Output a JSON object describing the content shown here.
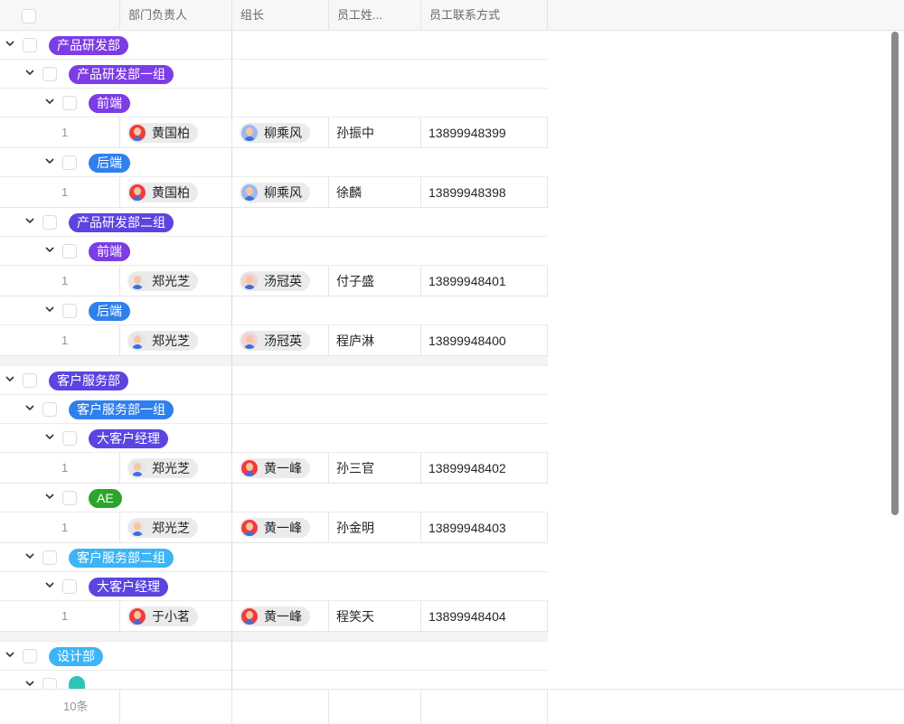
{
  "columns": [
    "部门负责人",
    "组长",
    "员工姓...",
    "员工联系方式"
  ],
  "footer": {
    "count": "10条"
  },
  "rows": [
    {
      "type": "group",
      "level": 0,
      "label": "产品研发部",
      "color": "#7c3ce6"
    },
    {
      "type": "group",
      "level": 1,
      "label": "产品研发部一组",
      "color": "#7c3ce6"
    },
    {
      "type": "group",
      "level": 2,
      "label": "前端",
      "color": "#7c3ce6"
    },
    {
      "type": "data",
      "index": "1",
      "head": {
        "name": "黄国柏",
        "avatar": "#f23b3b"
      },
      "lead": {
        "name": "柳乘风",
        "avatar": "#9ab8f0"
      },
      "employee": "孙振中",
      "phone": "13899948399"
    },
    {
      "type": "group",
      "level": 2,
      "label": "后端",
      "color": "#2f80ed"
    },
    {
      "type": "data",
      "index": "1",
      "head": {
        "name": "黄国柏",
        "avatar": "#f23b3b"
      },
      "lead": {
        "name": "柳乘风",
        "avatar": "#9ab8f0"
      },
      "employee": "徐麟",
      "phone": "13899948398"
    },
    {
      "type": "group",
      "level": 1,
      "label": "产品研发部二组",
      "color": "#5b45e0"
    },
    {
      "type": "group",
      "level": 2,
      "label": "前端",
      "color": "#7c3ce6"
    },
    {
      "type": "data",
      "index": "1",
      "head": {
        "name": "郑光芝",
        "avatar": "#e6e6e6"
      },
      "lead": {
        "name": "汤冠英",
        "avatar": "#f2d2d2"
      },
      "employee": "付子盛",
      "phone": "13899948401"
    },
    {
      "type": "group",
      "level": 2,
      "label": "后端",
      "color": "#2f80ed"
    },
    {
      "type": "data",
      "index": "1",
      "head": {
        "name": "郑光芝",
        "avatar": "#e6e6e6"
      },
      "lead": {
        "name": "汤冠英",
        "avatar": "#f2d2d2"
      },
      "employee": "程庐淋",
      "phone": "13899948400"
    },
    {
      "type": "spacer"
    },
    {
      "type": "group",
      "level": 0,
      "label": "客户服务部",
      "color": "#5b45e0"
    },
    {
      "type": "group",
      "level": 1,
      "label": "客户服务部一组",
      "color": "#2f80ed"
    },
    {
      "type": "group",
      "level": 2,
      "label": "大客户经理",
      "color": "#5b45e0"
    },
    {
      "type": "data",
      "index": "1",
      "head": {
        "name": "郑光芝",
        "avatar": "#e6e6e6"
      },
      "lead": {
        "name": "黄一峰",
        "avatar": "#f23b3b"
      },
      "employee": "孙三官",
      "phone": "13899948402"
    },
    {
      "type": "group",
      "level": 2,
      "label": "AE",
      "color": "#2ba52b"
    },
    {
      "type": "data",
      "index": "1",
      "head": {
        "name": "郑光芝",
        "avatar": "#e6e6e6"
      },
      "lead": {
        "name": "黄一峰",
        "avatar": "#f23b3b"
      },
      "employee": "孙金明",
      "phone": "13899948403"
    },
    {
      "type": "group",
      "level": 1,
      "label": "客户服务部二组",
      "color": "#3db4f5"
    },
    {
      "type": "group",
      "level": 2,
      "label": "大客户经理",
      "color": "#5b45e0"
    },
    {
      "type": "data",
      "index": "1",
      "head": {
        "name": "于小茗",
        "avatar": "#f23b3b"
      },
      "lead": {
        "name": "黄一峰",
        "avatar": "#f23b3b"
      },
      "employee": "程笑天",
      "phone": "13899948404"
    },
    {
      "type": "spacer"
    },
    {
      "type": "group",
      "level": 0,
      "label": "设计部",
      "color": "#3db4f5"
    },
    {
      "type": "group",
      "level": 1,
      "label": "",
      "color": "#2ec4b6"
    }
  ]
}
